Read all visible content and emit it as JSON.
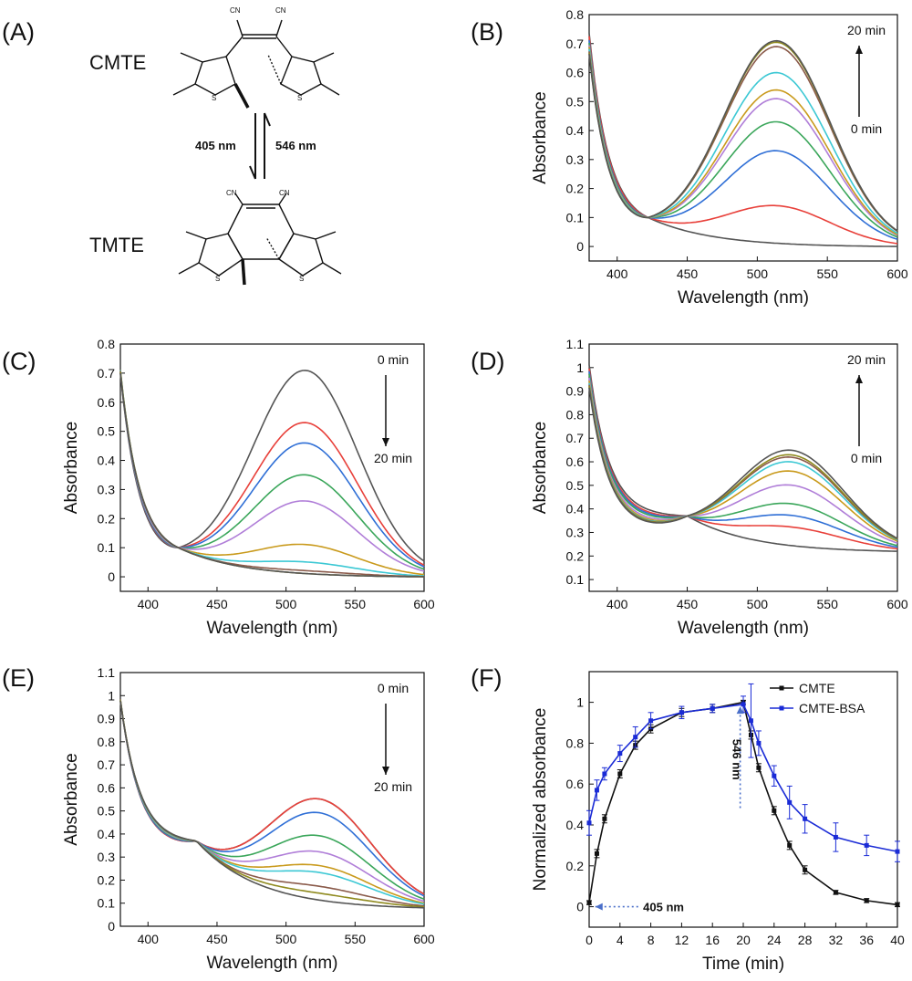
{
  "panel_labels": [
    "(A)",
    "(B)",
    "(C)",
    "(D)",
    "(E)",
    "(F)"
  ],
  "scheme": {
    "top_label": "CMTE",
    "bottom_label": "TMTE",
    "forward_text": "405 nm",
    "forward_color": "#7a35a8",
    "reverse_text": "546 nm",
    "reverse_color": "#7ab03c",
    "atoms": {
      "cn": "CN",
      "s": "S"
    }
  },
  "palette": [
    "#555555",
    "#e8403a",
    "#2f6fd6",
    "#3aa65a",
    "#b07ed8",
    "#c99a1c",
    "#3cc8d4",
    "#8a5a4a",
    "#8f8a1e"
  ],
  "chart_data": [
    {
      "id": "B",
      "type": "line",
      "xlabel": "Wavelength (nm)",
      "ylabel": "Absorbance",
      "xlim": [
        380,
        600
      ],
      "ylim": [
        -0.05,
        0.8
      ],
      "xticks": [
        400,
        450,
        500,
        550,
        600
      ],
      "yticks": [
        0.0,
        0.1,
        0.2,
        0.3,
        0.4,
        0.5,
        0.6,
        0.7,
        0.8
      ],
      "annotation": {
        "top": "20 min",
        "bottom": "0 min",
        "arrow": "up"
      },
      "series_peaks": [
        0.0,
        0.13,
        0.32,
        0.42,
        0.5,
        0.53,
        0.59,
        0.68,
        0.695,
        0.7
      ],
      "peak_center": 514,
      "isosbestic": [
        422,
        0.1
      ],
      "baseline_end": 0.0
    },
    {
      "id": "C",
      "type": "line",
      "xlabel": "Wavelength (nm)",
      "ylabel": "Absorbance",
      "xlim": [
        380,
        600
      ],
      "ylim": [
        -0.05,
        0.8
      ],
      "xticks": [
        400,
        450,
        500,
        550,
        600
      ],
      "yticks": [
        0.0,
        0.1,
        0.2,
        0.3,
        0.4,
        0.5,
        0.6,
        0.7,
        0.8
      ],
      "annotation": {
        "top": "0 min",
        "bottom": "20 min",
        "arrow": "down"
      },
      "series_peaks": [
        0.7,
        0.52,
        0.45,
        0.34,
        0.25,
        0.1,
        0.04,
        0.01,
        0.0,
        0.0
      ],
      "peak_center": 514,
      "isosbestic": [
        422,
        0.1
      ],
      "baseline_end": 0.0
    },
    {
      "id": "D",
      "type": "line",
      "xlabel": "Wavelength (nm)",
      "ylabel": "Absorbance",
      "xlim": [
        380,
        600
      ],
      "ylim": [
        0.05,
        1.1
      ],
      "xticks": [
        400,
        450,
        500,
        550,
        600
      ],
      "yticks": [
        0.1,
        0.2,
        0.3,
        0.4,
        0.5,
        0.6,
        0.7,
        0.8,
        0.9,
        1.0,
        1.1
      ],
      "annotation": {
        "top": "20 min",
        "bottom": "0 min",
        "arrow": "up"
      },
      "series_peaks": [
        0.0,
        0.08,
        0.13,
        0.18,
        0.26,
        0.32,
        0.36,
        0.38,
        0.39,
        0.41
      ],
      "peak_center": 524,
      "isosbestic": [
        450,
        0.37
      ],
      "baseline_end": 0.22
    },
    {
      "id": "E",
      "type": "line",
      "xlabel": "Wavelength (nm)",
      "ylabel": "Absorbance",
      "xlim": [
        380,
        600
      ],
      "ylim": [
        0.0,
        1.1
      ],
      "xticks": [
        400,
        450,
        500,
        550,
        600
      ],
      "yticks": [
        0.0,
        0.1,
        0.2,
        0.3,
        0.4,
        0.5,
        0.6,
        0.7,
        0.8,
        0.9,
        1.0,
        1.1
      ],
      "annotation": {
        "top": "0 min",
        "bottom": "20 min",
        "arrow": "down"
      },
      "series_peaks": [
        0.44,
        0.44,
        0.38,
        0.28,
        0.21,
        0.15,
        0.12,
        0.06,
        0.03,
        0.0
      ],
      "peak_center": 524,
      "isosbestic": [
        435,
        0.37
      ],
      "baseline_end": 0.08
    },
    {
      "id": "F",
      "type": "line",
      "xlabel": "Time (min)",
      "ylabel": "Normalized absorbance",
      "xlim": [
        0,
        40
      ],
      "ylim": [
        -0.1,
        1.15
      ],
      "xticks": [
        0,
        4,
        8,
        12,
        16,
        20,
        24,
        28,
        32,
        36,
        40
      ],
      "yticks": [
        0.0,
        0.2,
        0.4,
        0.6,
        0.8,
        1.0
      ],
      "legend_position": "top-right",
      "annotations": [
        {
          "text": "405 nm",
          "color": "#7a35a8"
        },
        {
          "text": "546 nm",
          "color": "#2faa4a"
        }
      ],
      "series": [
        {
          "name": "CMTE",
          "color": "#111111",
          "x": [
            0,
            1,
            2,
            4,
            6,
            8,
            12,
            16,
            20,
            21,
            22,
            24,
            26,
            28,
            32,
            36,
            40
          ],
          "y": [
            0.02,
            0.26,
            0.43,
            0.65,
            0.79,
            0.87,
            0.95,
            0.97,
            1.0,
            0.84,
            0.68,
            0.47,
            0.3,
            0.18,
            0.07,
            0.03,
            0.01
          ],
          "err": [
            0.01,
            0.02,
            0.02,
            0.02,
            0.02,
            0.02,
            0.02,
            0.02,
            0.01,
            0.02,
            0.02,
            0.02,
            0.02,
            0.02,
            0.01,
            0.01,
            0.01
          ]
        },
        {
          "name": "CMTE-BSA",
          "color": "#1a2bd6",
          "x": [
            0,
            1,
            2,
            4,
            6,
            8,
            12,
            16,
            20,
            21,
            22,
            24,
            26,
            28,
            32,
            36,
            40
          ],
          "y": [
            0.41,
            0.57,
            0.65,
            0.75,
            0.83,
            0.91,
            0.95,
            0.97,
            0.99,
            0.91,
            0.8,
            0.64,
            0.51,
            0.43,
            0.34,
            0.3,
            0.27
          ],
          "err": [
            0.06,
            0.05,
            0.03,
            0.04,
            0.05,
            0.04,
            0.03,
            0.02,
            0.04,
            0.18,
            0.06,
            0.05,
            0.08,
            0.07,
            0.07,
            0.05,
            0.05
          ]
        }
      ]
    }
  ]
}
